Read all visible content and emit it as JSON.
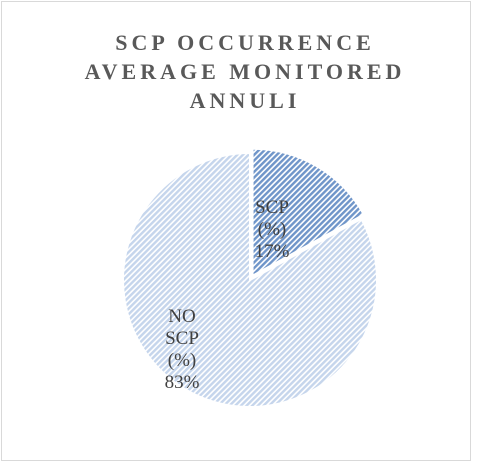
{
  "chart_data": {
    "type": "pie",
    "title": "SCP OCCURRENCE AVERAGE MONITORED ANNULI",
    "categories": [
      "SCP (%)",
      "NO SCP (%)"
    ],
    "values": [
      17,
      83
    ],
    "value_labels": [
      "17%",
      "83%"
    ],
    "colors": [
      "#6f95c9",
      "#c5d5ec"
    ]
  }
}
